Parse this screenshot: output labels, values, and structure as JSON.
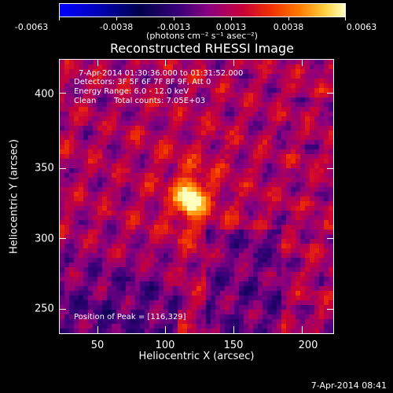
{
  "colorbar": {
    "ticks": [
      "-0.0063",
      "-0.0038",
      "-0.0013",
      "0.0013",
      "0.0038",
      "0.0063"
    ],
    "units": "(photons cm⁻² s⁻¹ asec⁻²)"
  },
  "title": "Reconstructed RHESSI Image",
  "annotations": {
    "time_range": "7-Apr-2014 01:30:36.000 to 01:31:52.000",
    "detectors": "Detectors: 3F 5F 6F 7F 8F 9F, Att 0",
    "energy": "Energy Range: 6.0 - 12.0 keV",
    "algorithm": "Clean",
    "total_counts": "Total counts: 7.05E+03",
    "peak": "Position of Peak = [116,329]"
  },
  "axes": {
    "xlabel": "Heliocentric X (arcsec)",
    "ylabel": "Heliocentric Y (arcsec)",
    "xticks": [
      "50",
      "100",
      "150",
      "200"
    ],
    "yticks": [
      "400",
      "350",
      "300",
      "250"
    ]
  },
  "footer": {
    "date": "7-Apr-2014 08:41"
  }
}
